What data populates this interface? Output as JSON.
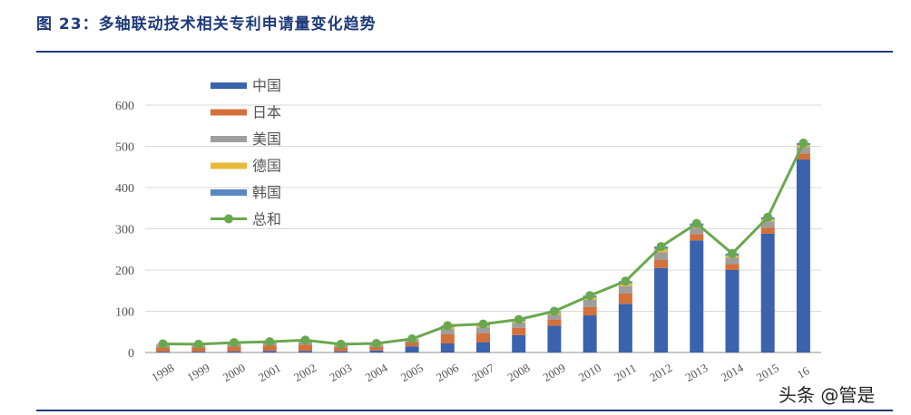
{
  "figure": {
    "title": "图 23：多轴联动技术相关专利申请量变化趋势",
    "watermark": "头条 @管是"
  },
  "colors": {
    "title": "#1f3a7a",
    "china": "#3b62ad",
    "japan": "#d4703a",
    "usa": "#9e9e9e",
    "germany": "#e6b93b",
    "korea": "#5b88c4",
    "total": "#6aa84f",
    "grid": "#d9d9d9",
    "axis": "#8c8c8c",
    "text": "#555555"
  },
  "chart_data": {
    "type": "bar",
    "stacked": true,
    "categories": [
      "1998",
      "1999",
      "2000",
      "2001",
      "2002",
      "2003",
      "2004",
      "2005",
      "2006",
      "2007",
      "2008",
      "2009",
      "2010",
      "2011",
      "2012",
      "2013",
      "2014",
      "2015",
      "16"
    ],
    "ylim": [
      0,
      600
    ],
    "yticks": [
      "0",
      "100",
      "200",
      "300",
      "400",
      "500",
      "600"
    ],
    "grid": true,
    "legend_position": "top-left",
    "series": [
      {
        "name": "中国",
        "values": [
          2,
          2,
          3,
          4,
          4,
          3,
          5,
          15,
          22,
          25,
          42,
          65,
          90,
          118,
          205,
          272,
          200,
          288,
          468
        ]
      },
      {
        "name": "日本",
        "values": [
          10,
          10,
          12,
          13,
          15,
          9,
          9,
          10,
          22,
          22,
          18,
          15,
          20,
          25,
          20,
          15,
          15,
          15,
          15
        ]
      },
      {
        "name": "美国",
        "values": [
          6,
          5,
          6,
          6,
          7,
          5,
          5,
          5,
          13,
          14,
          12,
          12,
          18,
          18,
          18,
          15,
          15,
          15,
          15
        ]
      },
      {
        "name": "德国",
        "values": [
          2,
          2,
          2,
          2,
          3,
          2,
          2,
          2,
          5,
          5,
          5,
          5,
          6,
          7,
          8,
          5,
          5,
          5,
          5
        ]
      },
      {
        "name": "韩国",
        "values": [
          1,
          1,
          1,
          1,
          1,
          1,
          1,
          1,
          3,
          3,
          3,
          3,
          4,
          5,
          6,
          6,
          5,
          5,
          5
        ]
      }
    ],
    "line_series": {
      "name": "总和",
      "values": [
        21,
        20,
        24,
        26,
        30,
        20,
        22,
        33,
        65,
        69,
        80,
        100,
        138,
        173,
        257,
        313,
        240,
        328,
        508
      ]
    }
  }
}
